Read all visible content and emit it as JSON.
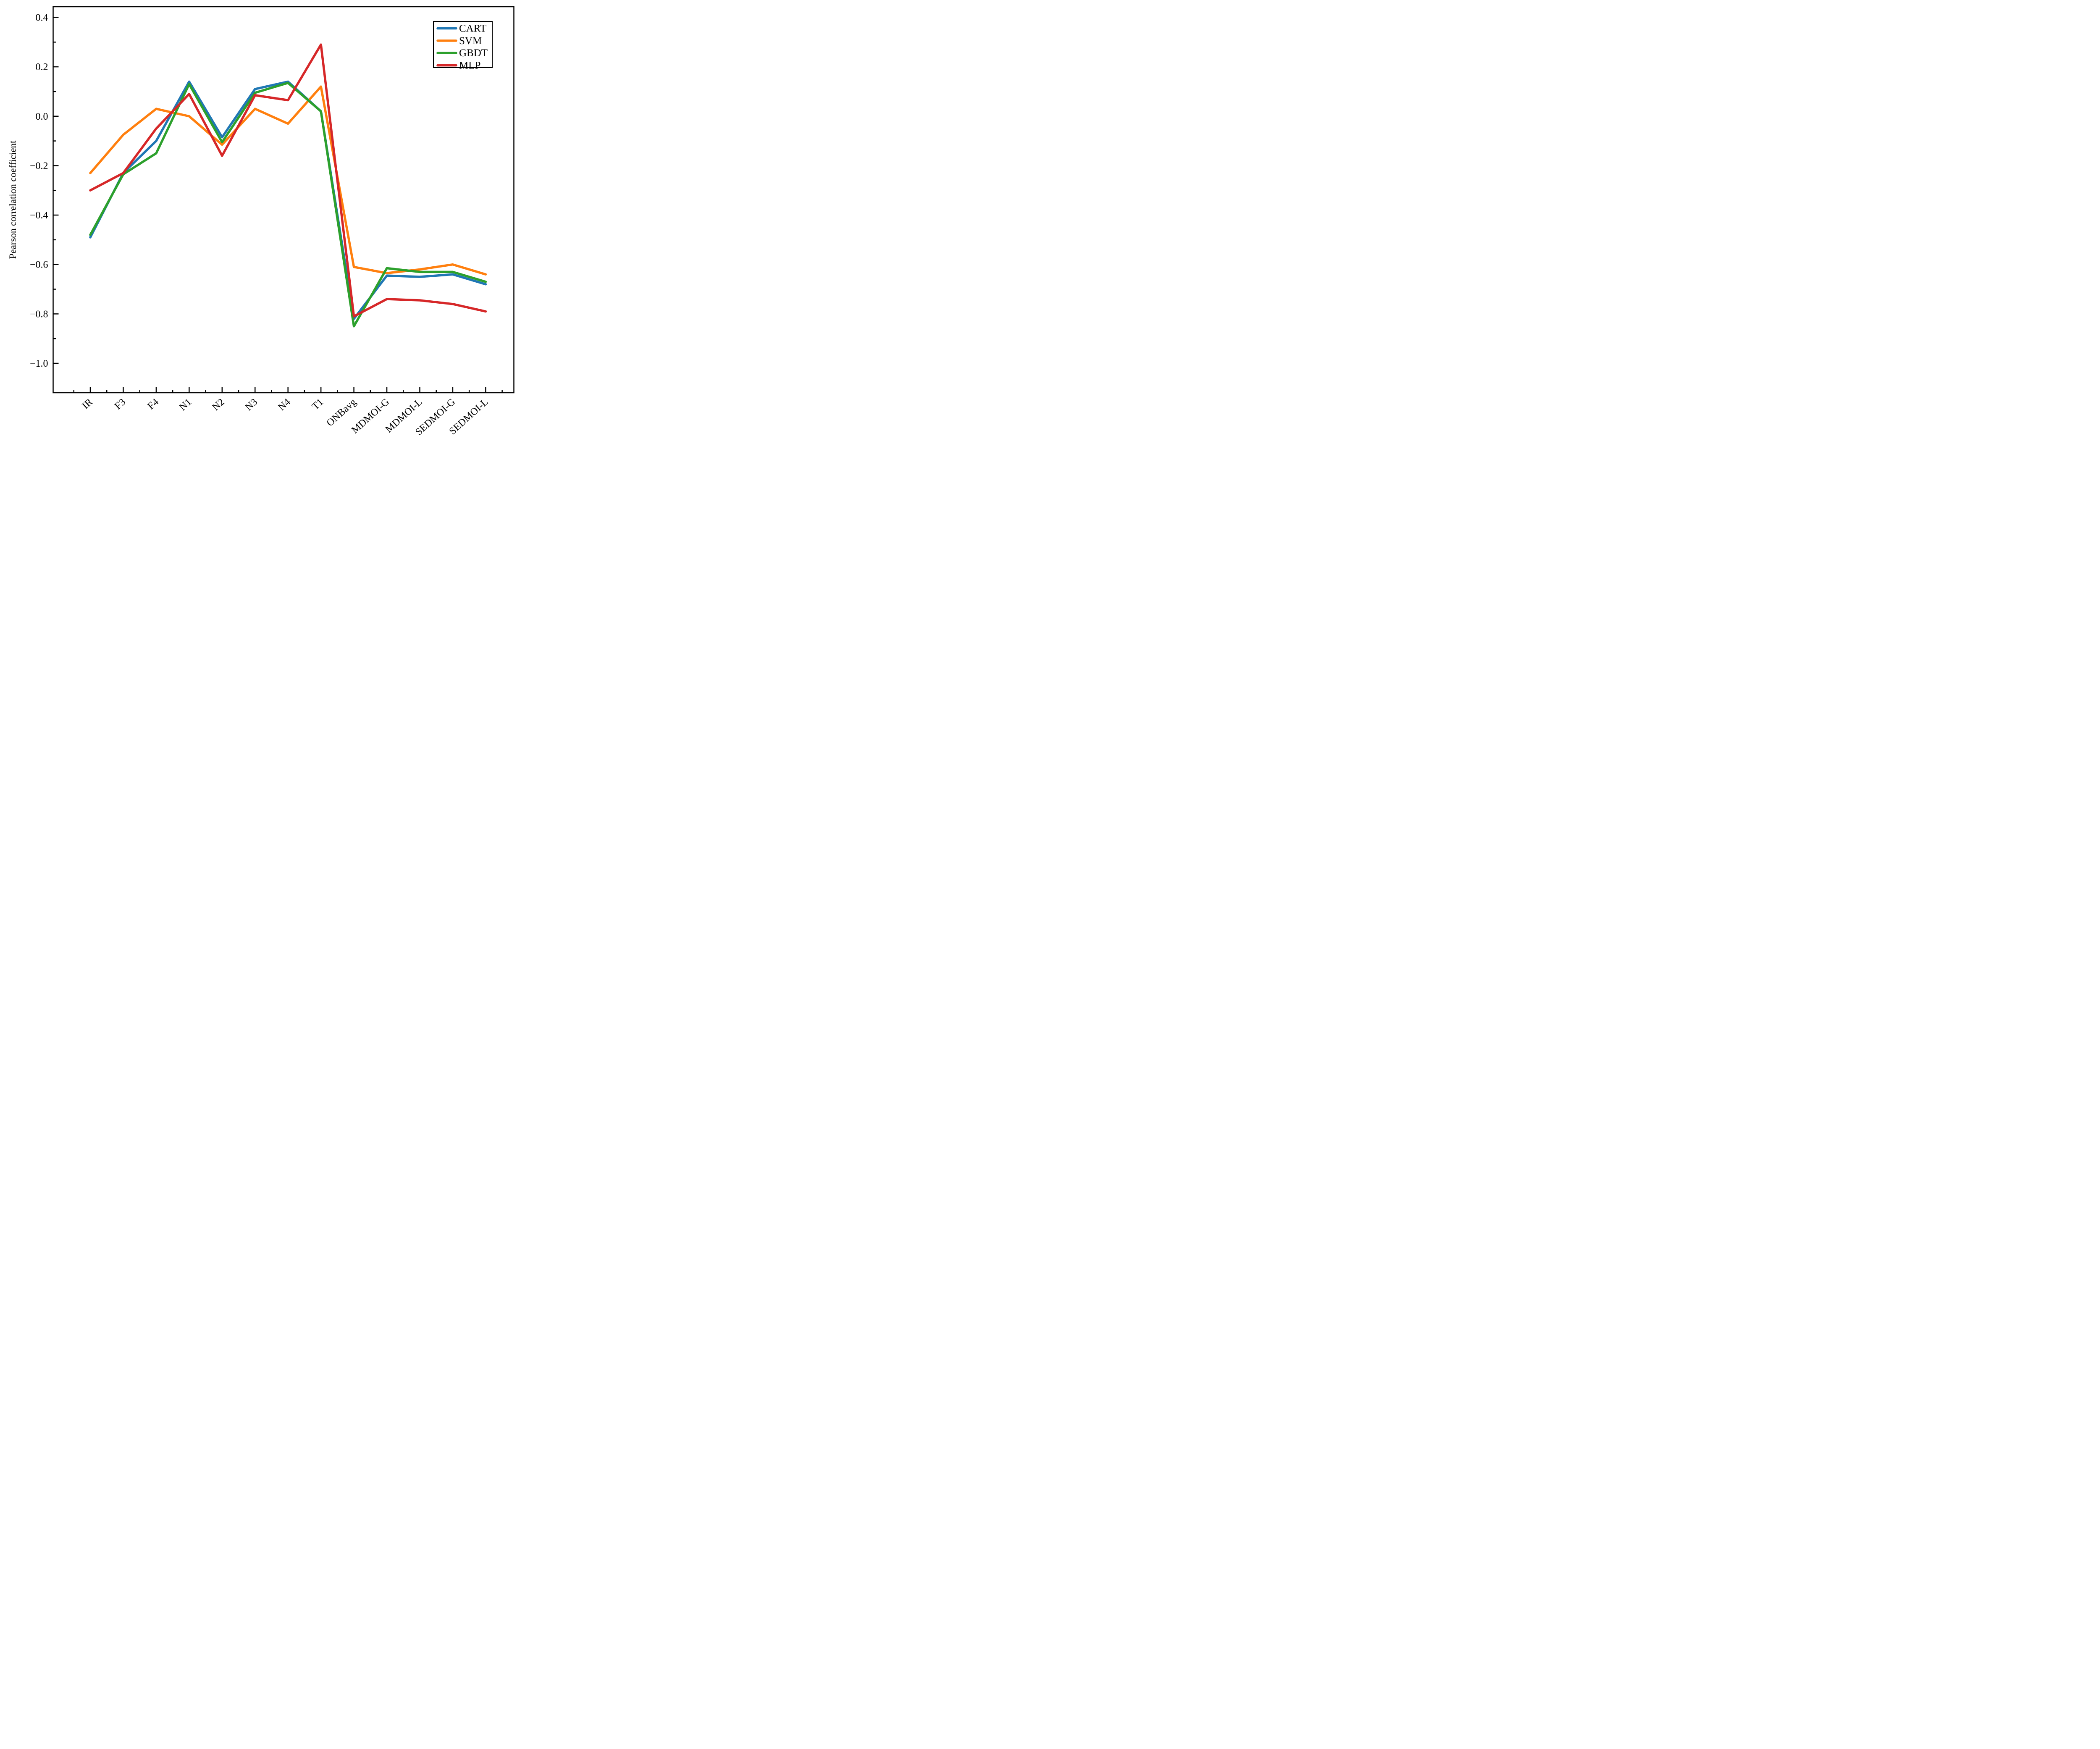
{
  "figure": {
    "background": "#ffffff",
    "frame_color": "#000000"
  },
  "chart_data": {
    "type": "line",
    "title": "",
    "xlabel": "",
    "ylabel": "Pearson correlation coefficient",
    "grid": false,
    "ylim": [
      -1.12,
      0.44
    ],
    "yticks": [
      0.4,
      0.2,
      0.0,
      -0.2,
      -0.4,
      -0.6,
      -0.8,
      -1.0
    ],
    "ytick_labels": [
      "0.4",
      "0.2",
      "0.0",
      "−0.2",
      "−0.4",
      "−0.6",
      "−0.8",
      "−1.0"
    ],
    "y_minor_ticks": [
      0.3,
      0.1,
      -0.1,
      -0.3,
      -0.5,
      -0.7,
      -0.9
    ],
    "categories": [
      "IR",
      "F3",
      "F4",
      "N1",
      "N2",
      "N3",
      "N4",
      "T1",
      "ONBavg",
      "MDMOI-G",
      "MDMOI-L",
      "SEDMOI-G",
      "SEDMOI-L"
    ],
    "series": [
      {
        "name": "CART",
        "color": "#1f77b4",
        "values": [
          -0.49,
          -0.23,
          -0.1,
          0.14,
          -0.085,
          0.11,
          0.14,
          0.02,
          -0.82,
          -0.645,
          -0.65,
          -0.64,
          -0.68
        ]
      },
      {
        "name": "SVM",
        "color": "#ff7f0e",
        "values": [
          -0.23,
          -0.075,
          0.03,
          0.0,
          -0.115,
          0.03,
          -0.03,
          0.12,
          -0.61,
          -0.635,
          -0.62,
          -0.6,
          -0.64
        ]
      },
      {
        "name": "GBDT",
        "color": "#2ca02c",
        "values": [
          -0.48,
          -0.235,
          -0.15,
          0.13,
          -0.105,
          0.095,
          0.135,
          0.02,
          -0.85,
          -0.615,
          -0.63,
          -0.63,
          -0.67
        ]
      },
      {
        "name": "MLP",
        "color": "#d62728",
        "values": [
          -0.3,
          -0.23,
          -0.05,
          0.09,
          -0.16,
          0.085,
          0.065,
          0.29,
          -0.81,
          -0.74,
          -0.745,
          -0.76,
          -0.79
        ]
      }
    ],
    "legend": {
      "position": "top-right",
      "entries": [
        "CART",
        "SVM",
        "GBDT",
        "MLP"
      ]
    }
  }
}
